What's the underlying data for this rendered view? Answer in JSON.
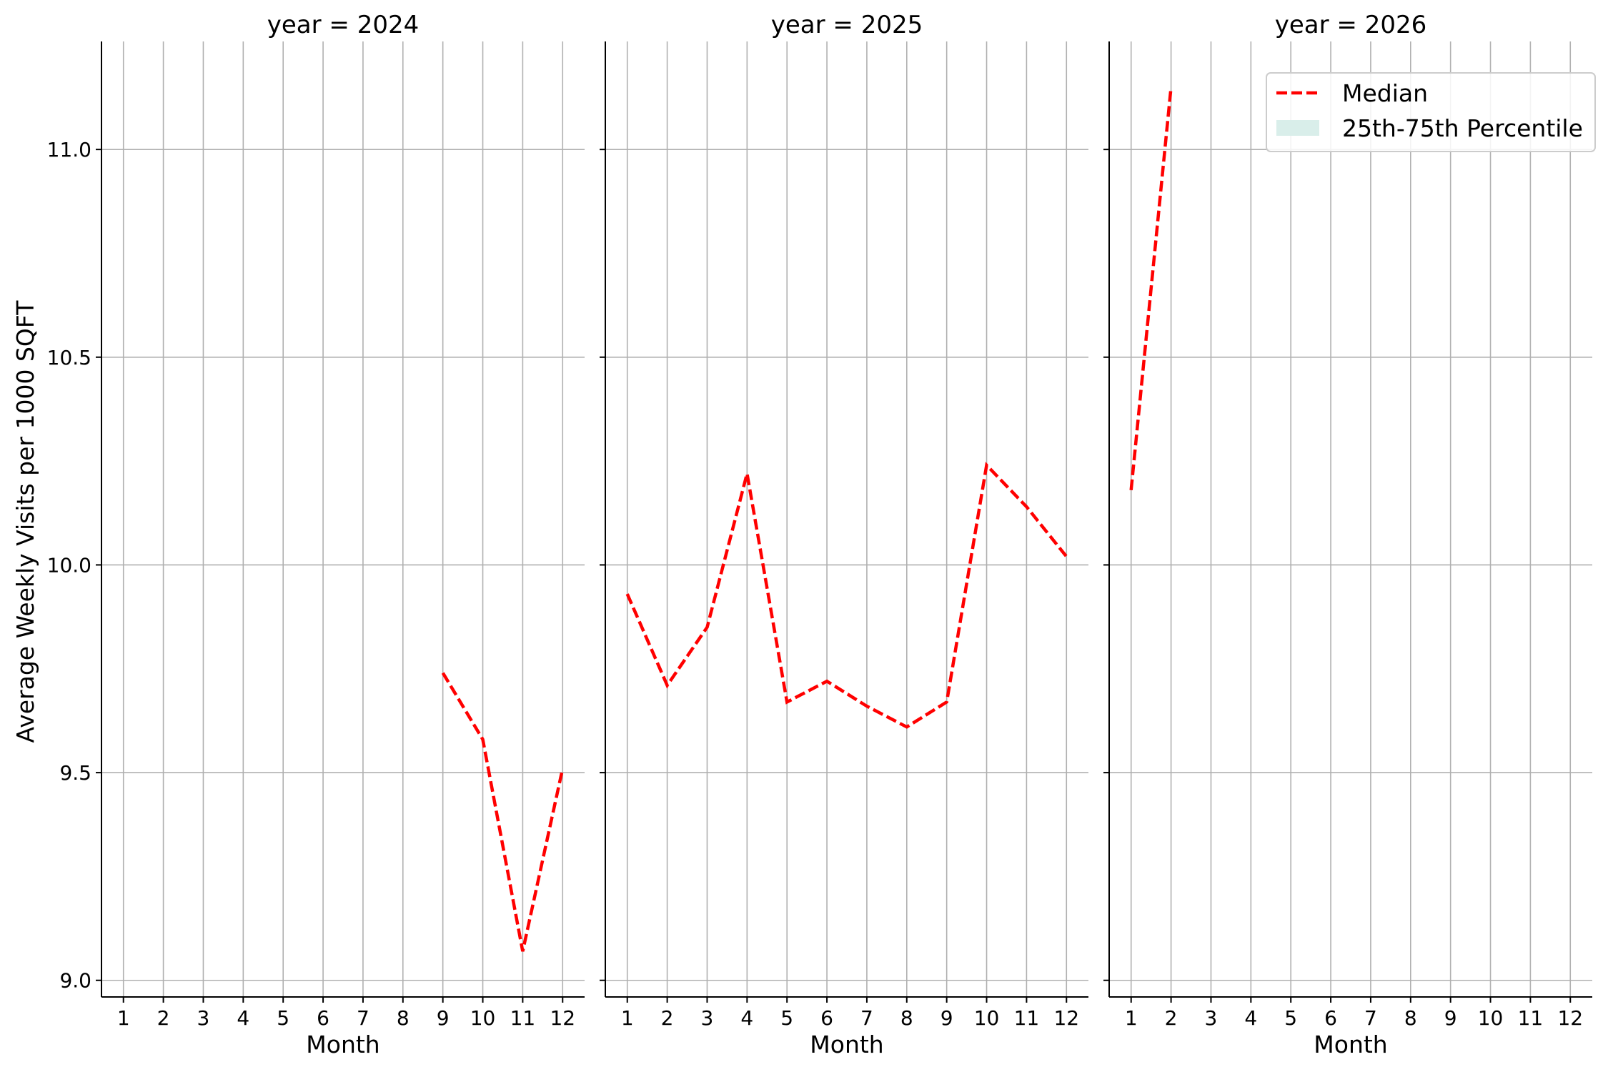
{
  "colors": {
    "median": "#ff0000",
    "iqr_fill": "#d9eeea",
    "grid": "#b0b0b0",
    "axis": "#000000"
  },
  "chart_data": {
    "type": "line",
    "ylabel": "Average Weekly Visits per 1000 SQFT",
    "ylim": [
      8.96,
      11.26
    ],
    "yticks": [
      9.0,
      9.5,
      10.0,
      10.5,
      11.0
    ],
    "ytick_labels": [
      "9.0",
      "9.5",
      "10.0",
      "10.5",
      "11.0"
    ],
    "xticks": [
      1,
      2,
      3,
      4,
      5,
      6,
      7,
      8,
      9,
      10,
      11,
      12
    ],
    "xtick_labels": [
      "1",
      "2",
      "3",
      "4",
      "5",
      "6",
      "7",
      "8",
      "9",
      "10",
      "11",
      "12"
    ],
    "grid": true,
    "legend": {
      "placement": "top-right",
      "entries": [
        {
          "label": "Median",
          "kind": "dashed-line"
        },
        {
          "label": "25th-75th Percentile",
          "kind": "patch"
        }
      ]
    },
    "panels": [
      {
        "title": "year = 2024",
        "xlabel": "Month",
        "series": [
          {
            "name": "Median",
            "x": [
              9,
              10,
              11,
              12
            ],
            "y": [
              9.74,
              9.58,
              9.07,
              9.51
            ]
          }
        ]
      },
      {
        "title": "year = 2025",
        "xlabel": "Month",
        "series": [
          {
            "name": "Median",
            "x": [
              1,
              2,
              3,
              4,
              5,
              6,
              7,
              8,
              9,
              10,
              11,
              12
            ],
            "y": [
              9.93,
              9.71,
              9.85,
              10.22,
              9.67,
              9.72,
              9.66,
              9.61,
              9.67,
              10.24,
              10.14,
              10.02
            ]
          }
        ]
      },
      {
        "title": "year = 2026",
        "xlabel": "Month",
        "series": [
          {
            "name": "Median",
            "x": [
              1,
              2
            ],
            "y": [
              10.18,
              11.15
            ]
          }
        ]
      }
    ]
  }
}
